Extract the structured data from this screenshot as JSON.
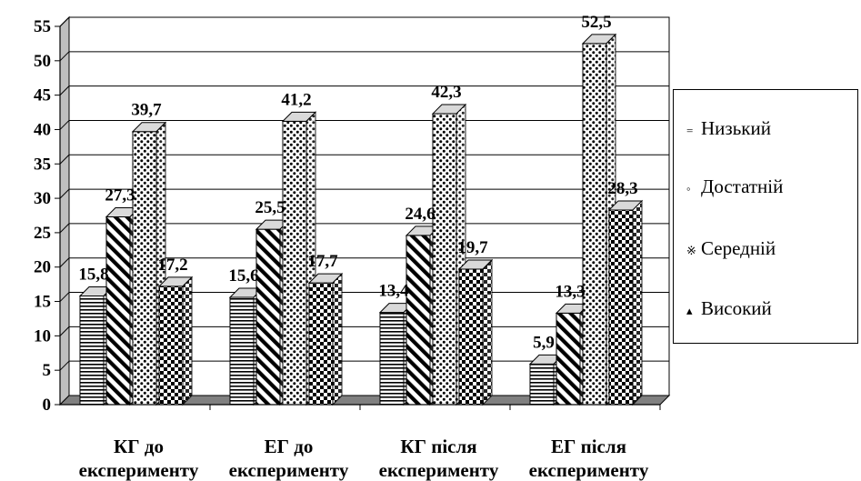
{
  "chart_data": {
    "type": "bar",
    "categories": [
      [
        "КГ до",
        "експерименту"
      ],
      [
        "ЕГ до",
        "експерименту"
      ],
      [
        "КГ після",
        "експерименту"
      ],
      [
        "ЕГ після",
        "експерименту"
      ]
    ],
    "series": [
      {
        "name": "Низький",
        "values": [
          15.8,
          15.6,
          13.4,
          5.9
        ],
        "labels": [
          "15,8",
          "15,6",
          "13,4",
          "5,9"
        ],
        "pattern": "hlines"
      },
      {
        "name": "Достатній",
        "values": [
          27.3,
          25.5,
          24.6,
          13.3
        ],
        "labels": [
          "27,3",
          "25,5",
          "24,6",
          "13,3"
        ],
        "pattern": "diag"
      },
      {
        "name": "Середній",
        "values": [
          39.7,
          41.2,
          42.3,
          52.5
        ],
        "labels": [
          "39,7",
          "41,2",
          "42,3",
          "52,5"
        ],
        "pattern": "dots"
      },
      {
        "name": "Високий",
        "values": [
          17.2,
          17.7,
          19.7,
          28.3
        ],
        "labels": [
          "17,2",
          "17,7",
          "19,7",
          "28,3"
        ],
        "pattern": "checker"
      }
    ],
    "ylim": [
      0,
      55
    ],
    "yticks": [
      "0",
      "5",
      "10",
      "15",
      "20",
      "25",
      "30",
      "35",
      "40",
      "45",
      "50",
      "55"
    ],
    "grid": true,
    "legend_position": "right",
    "style": "3d-column"
  },
  "legend": {
    "items": [
      {
        "marker": "=",
        "label": "Низький"
      },
      {
        "marker": "◦",
        "label": "Достатній"
      },
      {
        "marker": "※",
        "label": "Середній"
      },
      {
        "marker": "▴",
        "label": "Високий"
      }
    ]
  }
}
